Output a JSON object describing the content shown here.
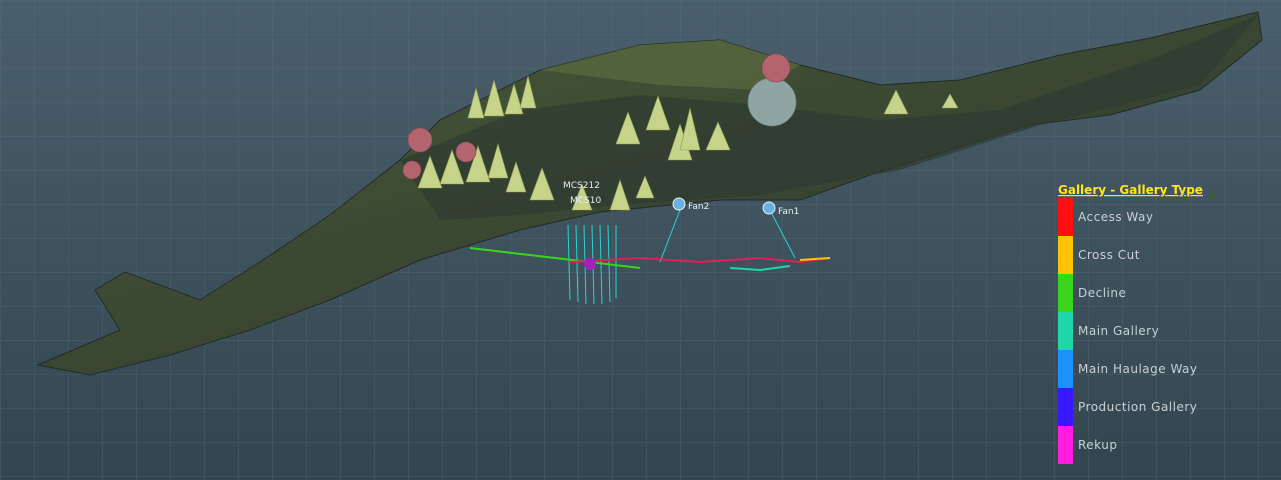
{
  "legend": {
    "title": "Gallery - Gallery Type",
    "items": [
      {
        "label": "Access Way",
        "color": "#ff1010"
      },
      {
        "label": "Cross Cut",
        "color": "#ffc400"
      },
      {
        "label": "Decline",
        "color": "#3ad61e"
      },
      {
        "label": "Main Gallery",
        "color": "#1ed7a8"
      },
      {
        "label": "Main Haulage Way",
        "color": "#1e90ff"
      },
      {
        "label": "Production Gallery",
        "color": "#3818ff"
      },
      {
        "label": "Rekup",
        "color": "#ff1ee0"
      }
    ]
  },
  "scene": {
    "labels": [
      "MCS212",
      "MCS10",
      "Fan2",
      "Fan1"
    ]
  }
}
